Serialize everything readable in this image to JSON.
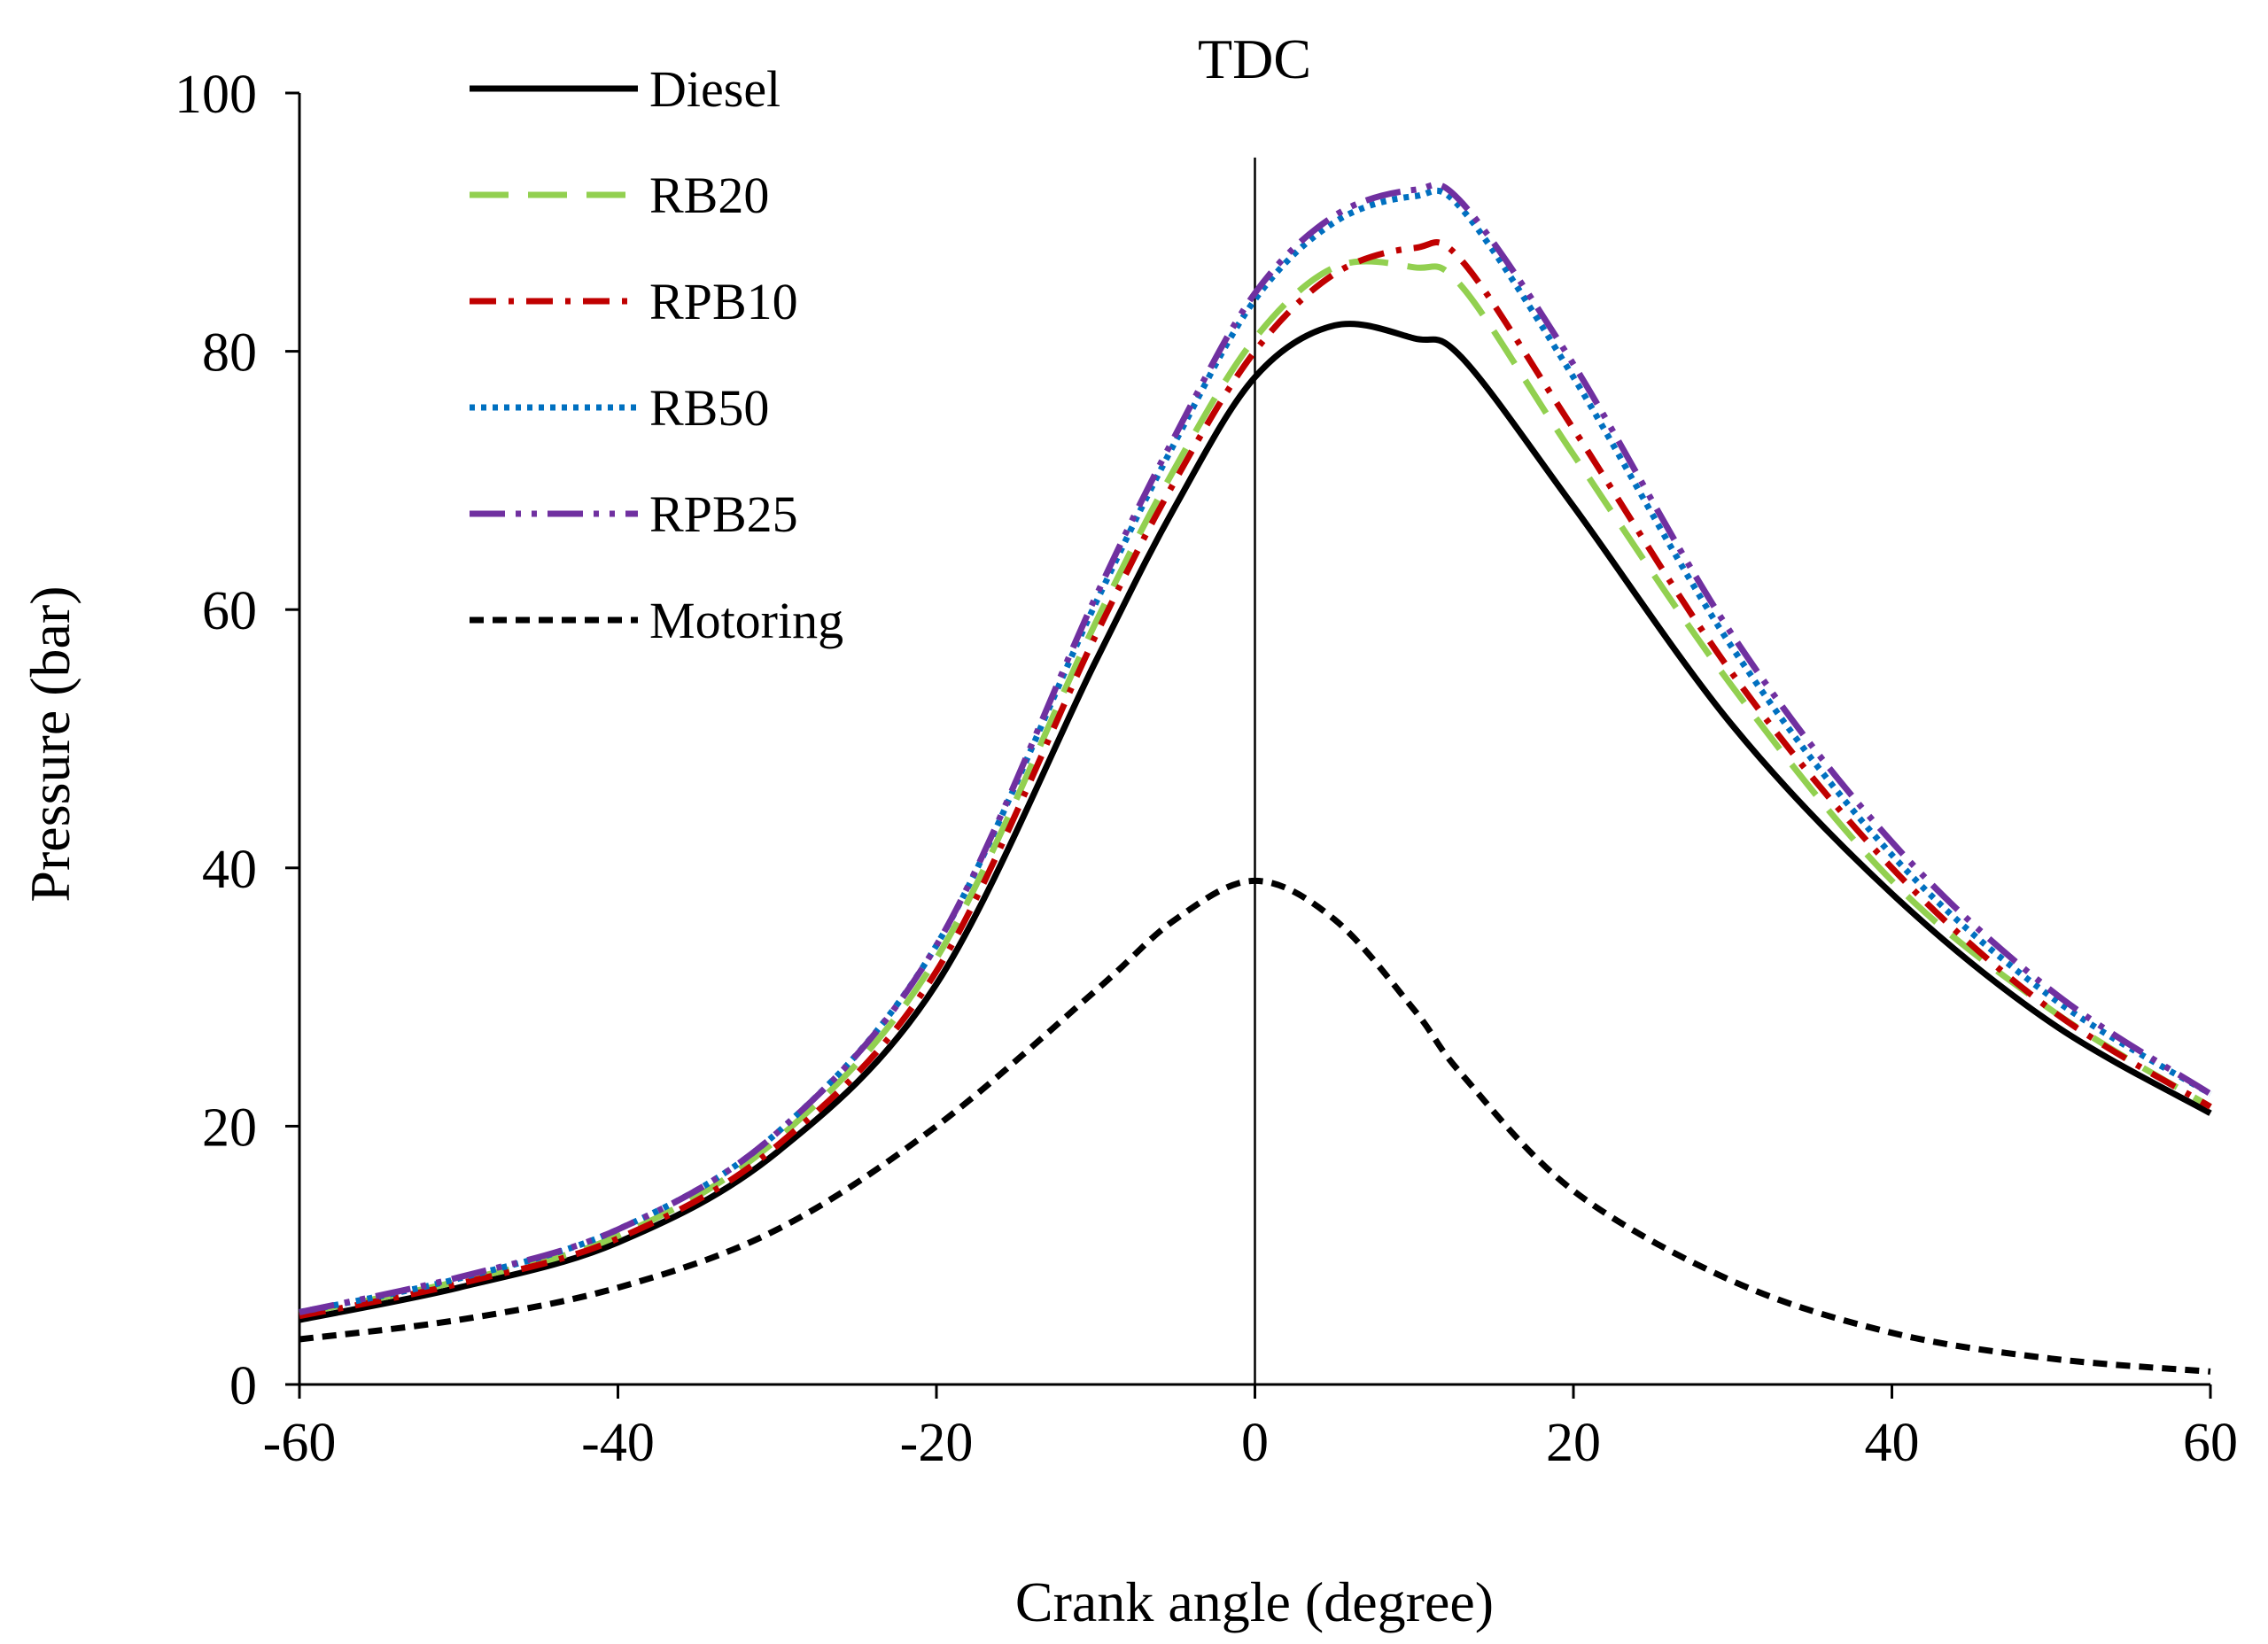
{
  "chart_data": {
    "type": "line",
    "title": "",
    "xlabel": "Crank angle (degree)",
    "ylabel": "Pressure (bar)",
    "xlim": [
      -60,
      60
    ],
    "ylim": [
      0,
      100
    ],
    "xticks": [
      -60,
      -40,
      -20,
      0,
      20,
      40,
      60
    ],
    "yticks": [
      0,
      20,
      40,
      60,
      80,
      100
    ],
    "xtick_labels": [
      "-60",
      "-40",
      "-20",
      "0",
      "20",
      "40",
      "60"
    ],
    "ytick_labels": [
      "0",
      "20",
      "40",
      "60",
      "80",
      "100"
    ],
    "grid": false,
    "legend_position": "top-left",
    "annotations": [
      {
        "text": "TDC",
        "x": 0
      }
    ],
    "x": [
      -60,
      -50,
      -40,
      -30,
      -20,
      -10,
      -5,
      0,
      5,
      10,
      13,
      20,
      30,
      40,
      50,
      60
    ],
    "series": [
      {
        "name": "Diesel",
        "color": "#000000",
        "dash": "solid",
        "values": [
          5,
          7.5,
          11,
          18,
          31,
          56,
          68,
          78,
          82,
          81,
          79.5,
          68,
          51,
          38,
          28,
          21
        ]
      },
      {
        "name": "RB20",
        "color": "#92d050",
        "dash": "long-dash",
        "values": [
          5.5,
          8,
          11.5,
          19,
          33,
          59,
          71,
          81,
          86.5,
          86.5,
          85,
          72,
          54,
          39,
          29,
          21.5
        ]
      },
      {
        "name": "RPB10",
        "color": "#c00000",
        "dash": "dash-dot",
        "values": [
          5.3,
          7.8,
          11.3,
          18.5,
          32,
          58,
          70,
          80,
          86,
          88,
          87,
          74,
          55,
          40,
          29,
          21.5
        ]
      },
      {
        "name": "RB50",
        "color": "#0070c0",
        "dash": "dotted",
        "values": [
          5.6,
          8.2,
          12,
          19.5,
          34,
          60.5,
          73,
          84,
          90,
          92,
          91,
          78,
          57,
          41,
          30,
          22.5
        ]
      },
      {
        "name": "RPB25",
        "color": "#7030a0",
        "dash": "long-dash-dot-dot",
        "values": [
          5.6,
          8.3,
          12,
          19.5,
          34,
          61,
          73.5,
          84.5,
          90.5,
          92.5,
          91.5,
          79,
          58,
          42,
          30.5,
          22.5
        ]
      },
      {
        "name": "Motoring",
        "color": "#000000",
        "dash": "short-dash",
        "values": [
          3.5,
          5,
          7.5,
          12,
          20,
          30.5,
          36,
          39,
          36,
          29,
          24,
          15,
          8,
          4,
          2,
          1
        ]
      }
    ]
  }
}
